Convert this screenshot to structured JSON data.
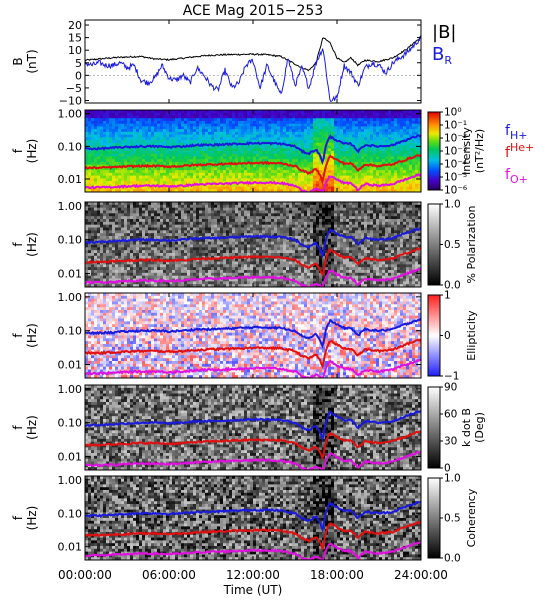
{
  "chart_data": {
    "type": "spectrogram",
    "title": "ACE Mag 2015−253",
    "xlabel": "Time (UT)",
    "x_ticks": [
      "00:00:00",
      "06:00:00",
      "12:00:00",
      "18:00:00",
      "24:00:00"
    ],
    "xlim_hours": [
      0,
      24
    ],
    "panels": [
      {
        "id": "field",
        "type": "line",
        "ylabel": "B",
        "yunit": "(nT)",
        "ylim": [
          -11,
          22
        ],
        "y_ticks": [
          20,
          15,
          10,
          5,
          0,
          -5,
          -10
        ],
        "legend": [
          {
            "label": "|B|",
            "color": "#000000"
          },
          {
            "label": "B",
            "sub": "R",
            "color": "#1a1adc"
          }
        ],
        "series": [
          {
            "name": "|B|",
            "color": "#000000",
            "x": [
              0,
              1,
              2,
              3,
              4,
              5,
              6,
              7,
              8,
              9,
              10,
              11,
              12,
              13,
              14,
              15,
              15.5,
              16,
              16.5,
              17,
              17.5,
              18,
              18.5,
              19,
              19.5,
              20,
              21,
              22,
              23,
              23.5,
              24
            ],
            "y": [
              6,
              6.5,
              7,
              7.3,
              7.5,
              6.5,
              6.2,
              6.8,
              7.5,
              8,
              8.2,
              8.3,
              8.4,
              8.2,
              7.5,
              4.5,
              3,
              2,
              5,
              15,
              13,
              7,
              5,
              7,
              4,
              6,
              5.5,
              7,
              10.5,
              13,
              15
            ]
          },
          {
            "name": "B_R",
            "color": "#1a1adc",
            "x": [
              0,
              0.5,
              1,
              1.5,
              2,
              2.5,
              3,
              3.5,
              4,
              4.5,
              5,
              5.5,
              6,
              6.5,
              7,
              7.5,
              8,
              8.5,
              9,
              9.5,
              10,
              10.5,
              11,
              11.5,
              12,
              12.5,
              13,
              13.5,
              14,
              14.5,
              15,
              15.5,
              16,
              16.5,
              17,
              17.5,
              18,
              18.5,
              19,
              19.5,
              20,
              20.5,
              21,
              21.5,
              22,
              22.5,
              23,
              23.5,
              24
            ],
            "y": [
              5,
              4,
              5,
              4,
              4,
              5,
              3,
              4,
              -2,
              -3,
              -1,
              4,
              -1,
              -2,
              0,
              -3,
              3,
              0,
              -4,
              -6,
              2,
              -5,
              -3,
              4,
              6,
              -5,
              4,
              -2,
              -8,
              7,
              -4,
              3,
              -5,
              5,
              11,
              -10,
              -9,
              4,
              1,
              -4,
              3,
              5,
              4,
              1,
              5,
              7,
              9,
              12,
              15
            ]
          }
        ]
      },
      {
        "id": "intensity",
        "type": "heatmap",
        "ylabel": "f",
        "yunit": "(Hz)",
        "ylim": [
          0.004,
          1.3
        ],
        "y_ticks": [
          "1.00",
          "0.10",
          "0.01"
        ],
        "colorbar_label": "Intensity",
        "colorbar_unit": "(nT²/Hz)",
        "colorbar_ticks": [
          "10⁰",
          "10⁻¹",
          "10⁻²",
          "10⁻³",
          "10⁻⁴",
          "10⁻⁵",
          "10⁻⁶"
        ],
        "colorbar_range": [
          -6,
          0
        ],
        "colormap": "rainbow",
        "legend": [
          {
            "label": "f",
            "sub": "H+",
            "color": "#1a1adc"
          },
          {
            "label": "f",
            "sub": "He+",
            "color": "#e01010"
          },
          {
            "label": "f",
            "sub": "O+",
            "color": "#e010e0"
          }
        ]
      },
      {
        "id": "polarization",
        "type": "heatmap",
        "ylabel": "f",
        "yunit": "(Hz)",
        "ylim": [
          0.004,
          1.3
        ],
        "y_ticks": [
          "1.00",
          "0.10",
          "0.01"
        ],
        "colorbar_label": "% Polarization",
        "colorbar_unit": "",
        "colorbar_ticks": [
          "1.0",
          "0.5",
          "0.0"
        ],
        "colorbar_range": [
          0,
          1
        ],
        "colormap": "gray",
        "legend": []
      },
      {
        "id": "ellipticity",
        "type": "heatmap",
        "ylabel": "f",
        "yunit": "(Hz)",
        "ylim": [
          0.004,
          1.3
        ],
        "y_ticks": [
          "1.00",
          "0.10",
          "0.01"
        ],
        "colorbar_label": "Ellipticity",
        "colorbar_unit": "",
        "colorbar_ticks": [
          "1",
          "0",
          "−1"
        ],
        "colorbar_range": [
          -1,
          1
        ],
        "colormap": "bwr",
        "legend": []
      },
      {
        "id": "kdotb",
        "type": "heatmap",
        "ylabel": "f",
        "yunit": "(Hz)",
        "ylim": [
          0.004,
          1.3
        ],
        "y_ticks": [
          "1.00",
          "0.10",
          "0.01"
        ],
        "colorbar_label": "k dot B",
        "colorbar_unit": "(Deg)",
        "colorbar_ticks": [
          "90",
          "60",
          "30",
          "0"
        ],
        "colorbar_range": [
          0,
          90
        ],
        "colormap": "gray",
        "legend": []
      },
      {
        "id": "coherency",
        "type": "heatmap",
        "ylabel": "f",
        "yunit": "(Hz)",
        "ylim": [
          0.004,
          1.3
        ],
        "y_ticks": [
          "1.00",
          "0.10",
          "0.01"
        ],
        "colorbar_label": "Coherency",
        "colorbar_unit": "",
        "colorbar_ticks": [
          "1.0",
          "0.5",
          "0.0"
        ],
        "colorbar_range": [
          0,
          1
        ],
        "colormap": "gray",
        "legend": []
      }
    ],
    "gyrofrequency_lines": [
      {
        "name": "f_H+",
        "color": "#1a1adc",
        "x": [
          0,
          1,
          2,
          3,
          4,
          5,
          6,
          7,
          8,
          9,
          10,
          11,
          12,
          13,
          14,
          15,
          15.5,
          16,
          16.5,
          17,
          17.5,
          18,
          18.5,
          19,
          19.5,
          20,
          21,
          22,
          23,
          23.5,
          24
        ],
        "y": [
          0.085,
          0.085,
          0.09,
          0.095,
          0.1,
          0.1,
          0.095,
          0.1,
          0.11,
          0.11,
          0.115,
          0.12,
          0.125,
          0.125,
          0.12,
          0.1,
          0.07,
          0.06,
          0.08,
          0.03,
          0.2,
          0.15,
          0.12,
          0.12,
          0.07,
          0.11,
          0.1,
          0.11,
          0.16,
          0.19,
          0.22
        ]
      },
      {
        "name": "f_He+",
        "color": "#e01010",
        "x": [
          0,
          1,
          2,
          3,
          4,
          5,
          6,
          7,
          8,
          9,
          10,
          11,
          12,
          13,
          14,
          15,
          15.5,
          16,
          16.5,
          17,
          17.5,
          18,
          18.5,
          19,
          19.5,
          20,
          21,
          22,
          23,
          23.5,
          24
        ],
        "y": [
          0.022,
          0.022,
          0.023,
          0.024,
          0.025,
          0.025,
          0.024,
          0.025,
          0.027,
          0.028,
          0.029,
          0.03,
          0.031,
          0.031,
          0.03,
          0.025,
          0.018,
          0.015,
          0.02,
          0.008,
          0.05,
          0.038,
          0.03,
          0.03,
          0.018,
          0.028,
          0.025,
          0.028,
          0.04,
          0.048,
          0.055
        ]
      },
      {
        "name": "f_O+",
        "color": "#e010e0",
        "x": [
          0,
          1,
          2,
          3,
          4,
          5,
          6,
          7,
          8,
          9,
          10,
          11,
          12,
          13,
          14,
          15,
          15.5,
          16,
          16.5,
          17,
          17.5,
          18,
          18.5,
          19,
          19.5,
          20,
          21,
          22,
          23,
          23.5,
          24
        ],
        "y": [
          0.0055,
          0.0055,
          0.0057,
          0.006,
          0.0062,
          0.0062,
          0.006,
          0.0062,
          0.0068,
          0.007,
          0.0072,
          0.0075,
          0.0078,
          0.0078,
          0.0075,
          0.0062,
          0.0045,
          0.004,
          0.005,
          0.004,
          0.0125,
          0.0095,
          0.0075,
          0.0075,
          0.0045,
          0.007,
          0.0062,
          0.007,
          0.01,
          0.012,
          0.0138
        ]
      }
    ]
  }
}
